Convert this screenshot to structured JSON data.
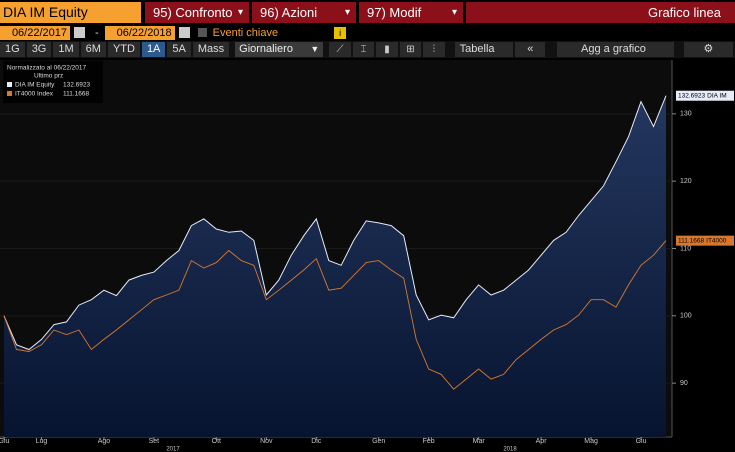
{
  "toolbar": {
    "security": "DIA IM Equity",
    "menus": [
      "95) Confronto",
      "96) Azioni",
      "97) Modif"
    ],
    "view": "Grafico linea",
    "start_date": "06/22/2017",
    "date_separator": "-",
    "end_date": "06/22/2018",
    "events": "Eventi chiave",
    "periods": [
      "1G",
      "3G",
      "1M",
      "6M",
      "YTD",
      "1A",
      "5A",
      "Mass"
    ],
    "active_period": 5,
    "frequency": "Giornaliero",
    "table": "Tabella",
    "add": "Agg a grafico"
  },
  "chart_data": {
    "type": "area-line",
    "legend_title": "Normalizzato al 06/22/2017",
    "legend_subtitle": "Ultimo prz",
    "categories": [
      "Giu",
      null,
      null,
      "Lug",
      null,
      null,
      null,
      null,
      "Ago",
      null,
      null,
      null,
      "Set",
      null,
      null,
      null,
      null,
      "Ott",
      null,
      null,
      null,
      "Nov",
      null,
      null,
      null,
      "Dic",
      null,
      null,
      null,
      null,
      "Gen",
      null,
      null,
      null,
      "Feb",
      null,
      null,
      null,
      "Mar",
      null,
      null,
      null,
      null,
      "Apr",
      null,
      null,
      null,
      "Mag",
      null,
      null,
      null,
      "Giu",
      null,
      null
    ],
    "years": [
      "2017",
      "2018"
    ],
    "series": [
      {
        "name": "DIA IM Equity",
        "short_name": "DIA IM",
        "color": "#e6ecf8",
        "fill": "#1c2c50",
        "values": [
          100,
          95.7,
          95,
          96.5,
          98.7,
          99.1,
          101.6,
          102.4,
          103.8,
          103,
          105.3,
          106,
          106.5,
          108.2,
          109.7,
          113.4,
          114.4,
          112.9,
          112.4,
          112.6,
          111.2,
          103.1,
          105.3,
          109,
          111.9,
          114.4,
          108.2,
          107.5,
          111.2,
          114.1,
          113.8,
          113.4,
          111.9,
          103.1,
          99.4,
          100.1,
          99.7,
          102.4,
          104.6,
          103.1,
          103.8,
          105.3,
          106.8,
          109,
          111.2,
          112.4,
          114.9,
          117.1,
          119.3,
          122.9,
          126.6,
          131.8,
          128.1,
          132.6923
        ]
      },
      {
        "name": "IT4000 Index",
        "short_name": "IT4000",
        "color": "#d9782d",
        "values": [
          100,
          95,
          94.7,
          95.7,
          97.9,
          97.2,
          97.9,
          95,
          96.5,
          97.9,
          99.4,
          100.9,
          102.4,
          103.1,
          103.8,
          108.2,
          107.1,
          107.9,
          109.7,
          108.2,
          107.5,
          102.4,
          103.8,
          105.3,
          106.8,
          108.5,
          103.8,
          104.1,
          106,
          107.9,
          108.2,
          106.8,
          105.6,
          96.5,
          92.1,
          91.3,
          89.1,
          90.6,
          92.1,
          90.6,
          91.3,
          93.5,
          95,
          96.5,
          97.9,
          98.7,
          100.1,
          102.4,
          102.4,
          101.3,
          104.6,
          107.5,
          109,
          111.1668
        ]
      }
    ],
    "ylim": [
      82,
      138
    ],
    "yticks": [
      90,
      100,
      110,
      120,
      130
    ],
    "axis_side": "right"
  }
}
